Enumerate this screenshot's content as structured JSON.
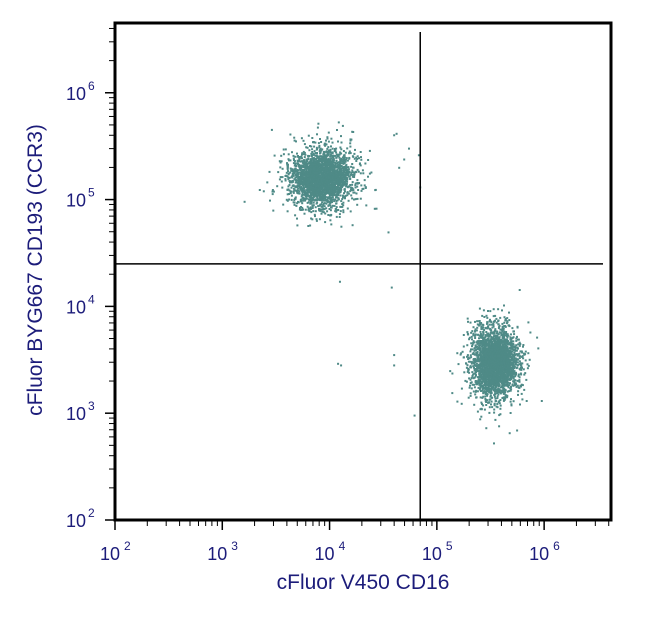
{
  "chart_data": {
    "type": "scatter",
    "xlabel": "cFluor V450 CD16",
    "ylabel": "cFluor BYG667 CD193 (CCR3)",
    "x_scale": "log",
    "y_scale": "log",
    "xlim": [
      100,
      4200000
    ],
    "ylim": [
      100,
      4500000
    ],
    "x_ticks": [
      {
        "value": 100,
        "base": "10",
        "exp": "2"
      },
      {
        "value": 1000,
        "base": "10",
        "exp": "3"
      },
      {
        "value": 10000,
        "base": "10",
        "exp": "4"
      },
      {
        "value": 100000,
        "base": "10",
        "exp": "5"
      },
      {
        "value": 1000000,
        "base": "10",
        "exp": "6"
      }
    ],
    "y_ticks": [
      {
        "value": 100,
        "base": "10",
        "exp": "2"
      },
      {
        "value": 1000,
        "base": "10",
        "exp": "3"
      },
      {
        "value": 10000,
        "base": "10",
        "exp": "4"
      },
      {
        "value": 100000,
        "base": "10",
        "exp": "5"
      },
      {
        "value": 1000000,
        "base": "10",
        "exp": "6"
      }
    ],
    "quadrant_gate": {
      "x": 70000,
      "y": 25000
    },
    "point_color": "#4f8a87",
    "populations": [
      {
        "center_x": 8500,
        "center_y": 160000,
        "spread_log_x": 0.14,
        "spread_log_y": 0.13,
        "count": 2600
      },
      {
        "center_x": 350000,
        "center_y": 3000,
        "spread_log_x": 0.1,
        "spread_log_y": 0.15,
        "count": 2900
      }
    ],
    "outliers": [
      [
        12500,
        17000
      ],
      [
        38000,
        15000
      ],
      [
        12000,
        2900
      ],
      [
        12800,
        2800
      ],
      [
        40000,
        3500
      ],
      [
        40000,
        2800
      ],
      [
        62000,
        950
      ],
      [
        40000,
        400000
      ],
      [
        55000,
        300000
      ],
      [
        68000,
        260000
      ],
      [
        70000,
        130000
      ]
    ],
    "grid": false,
    "legend": "none"
  }
}
